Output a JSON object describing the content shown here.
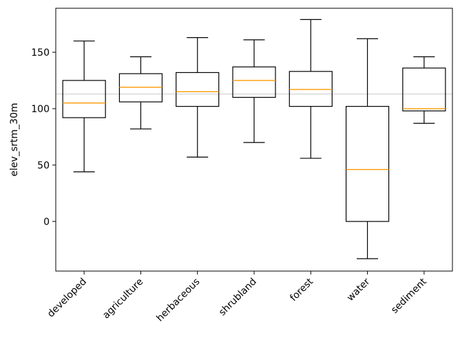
{
  "chart_data": {
    "type": "boxplot",
    "title": "",
    "xlabel": "",
    "ylabel": "elev_srtm_30m",
    "ylim": [
      -44,
      189
    ],
    "yticks": [
      0,
      50,
      100,
      150
    ],
    "grid": false,
    "reference_line": 113,
    "categories": [
      "developed",
      "agriculture",
      "herbaceous",
      "shrubland",
      "forest",
      "water",
      "sediment"
    ],
    "boxes": [
      {
        "whislo": 44,
        "q1": 92,
        "med": 105,
        "q3": 125,
        "whishi": 160
      },
      {
        "whislo": 82,
        "q1": 106,
        "med": 119,
        "q3": 131,
        "whishi": 146
      },
      {
        "whislo": 57,
        "q1": 102,
        "med": 115,
        "q3": 132,
        "whishi": 163
      },
      {
        "whislo": 70,
        "q1": 110,
        "med": 125,
        "q3": 137,
        "whishi": 161
      },
      {
        "whislo": 56,
        "q1": 102,
        "med": 117,
        "q3": 133,
        "whishi": 179
      },
      {
        "whislo": -33,
        "q1": 0,
        "med": 46,
        "q3": 102,
        "whishi": 162
      },
      {
        "whislo": 87,
        "q1": 98,
        "med": 100,
        "q3": 136,
        "whishi": 146
      }
    ],
    "colors": {
      "box": "#000000",
      "median": "#ff9900",
      "reference_line": "#d3d3d3"
    }
  }
}
